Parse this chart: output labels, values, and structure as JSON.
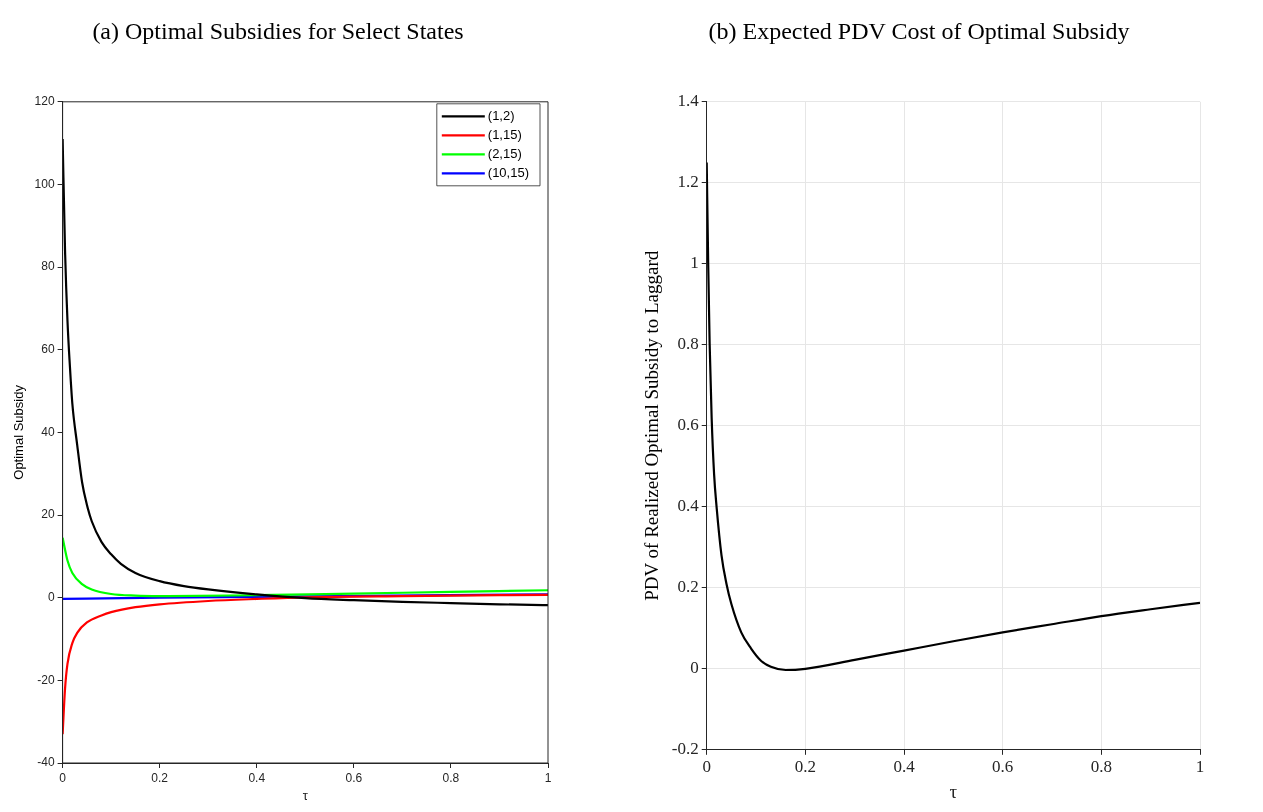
{
  "chart_data": [
    {
      "type": "line",
      "title": "(a) Optimal Subsidies for Select States",
      "xlabel": "τ",
      "ylabel": "Optimal Subsidy",
      "xlim": [
        0,
        1
      ],
      "xticks": [
        0,
        0.2,
        0.4,
        0.6,
        0.8,
        1
      ],
      "ylim": [
        -40,
        120
      ],
      "yticks": [
        -40,
        -20,
        0,
        20,
        40,
        60,
        80,
        100,
        120
      ],
      "grid": false,
      "legend": "top right",
      "marker": "none",
      "line_style": "solid",
      "series": [
        {
          "name": "(1,2)",
          "color": "#000000",
          "x": [
            0,
            0.005,
            0.01,
            0.015,
            0.02,
            0.03,
            0.04,
            0.05,
            0.06,
            0.08,
            0.1,
            0.12,
            0.15,
            0.2,
            0.25,
            0.3,
            0.4,
            0.5,
            0.6,
            0.7,
            0.8,
            0.9,
            1
          ],
          "values": [
            111,
            84,
            67,
            56,
            47,
            37,
            28,
            22.5,
            18.5,
            13.5,
            10.5,
            8.2,
            6,
            4,
            2.8,
            2,
            0.8,
            -0.1,
            -0.6,
            -1,
            -1.3,
            -1.6,
            -1.8
          ]
        },
        {
          "name": "(1,15)",
          "color": "#ff0000",
          "x": [
            0,
            0.005,
            0.01,
            0.02,
            0.03,
            0.05,
            0.08,
            0.1,
            0.15,
            0.2,
            0.3,
            0.4,
            0.5,
            0.7,
            1
          ],
          "values": [
            -33,
            -22,
            -16,
            -11,
            -8.5,
            -6,
            -4.3,
            -3.5,
            -2.3,
            -1.6,
            -0.8,
            -0.3,
            0.1,
            0.4,
            0.7
          ]
        },
        {
          "name": "(2,15)",
          "color": "#00ff00",
          "x": [
            0,
            0.01,
            0.02,
            0.04,
            0.06,
            0.1,
            0.15,
            0.2,
            0.4,
            0.6,
            0.8,
            1
          ],
          "values": [
            14.5,
            9,
            6,
            3.3,
            2,
            0.9,
            0.5,
            0.4,
            0.6,
            1,
            1.4,
            1.8
          ]
        },
        {
          "name": "(10,15)",
          "color": "#0000ff",
          "x": [
            0,
            0.2,
            1
          ],
          "values": [
            -0.3,
            0,
            0.8
          ]
        }
      ]
    },
    {
      "type": "line",
      "title": "(b) Expected PDV Cost of Optimal Subsidy",
      "xlabel": "τ",
      "ylabel": "PDV of Realized Optimal Subsidy to Laggard",
      "xlim": [
        0,
        1
      ],
      "xticks": [
        0,
        0.2,
        0.4,
        0.6,
        0.8,
        1
      ],
      "ylim": [
        -0.2,
        1.4
      ],
      "yticks": [
        -0.2,
        0,
        0.2,
        0.4,
        0.6,
        0.8,
        1,
        1.2,
        1.4
      ],
      "grid": true,
      "marker": "none",
      "line_style": "solid",
      "series": [
        {
          "color": "#000000",
          "x": [
            0,
            0.003,
            0.006,
            0.01,
            0.015,
            0.02,
            0.03,
            0.04,
            0.05,
            0.07,
            0.09,
            0.11,
            0.13,
            0.16,
            0.2,
            0.3,
            0.4,
            0.5,
            0.6,
            0.7,
            0.8,
            0.9,
            1
          ],
          "values": [
            1.25,
            1,
            0.8,
            0.62,
            0.48,
            0.4,
            0.28,
            0.21,
            0.16,
            0.09,
            0.05,
            0.02,
            0.005,
            -0.003,
            0,
            0.022,
            0.045,
            0.068,
            0.09,
            0.11,
            0.13,
            0.147,
            0.163
          ]
        }
      ]
    }
  ]
}
